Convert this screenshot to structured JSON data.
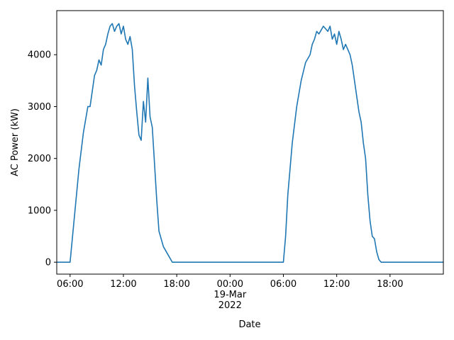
{
  "chart_data": {
    "type": "line",
    "xlabel": "Date",
    "ylabel": "AC Power (kW)",
    "xlim": [
      4.5,
      48
    ],
    "ylim": [
      -230,
      4850
    ],
    "xticks": [
      {
        "value": 6,
        "label": "06:00"
      },
      {
        "value": 12,
        "label": "12:00"
      },
      {
        "value": 18,
        "label": "18:00"
      },
      {
        "value": 24,
        "label": "00:00\n19-Mar\n2022"
      },
      {
        "value": 30,
        "label": "06:00"
      },
      {
        "value": 36,
        "label": "12:00"
      },
      {
        "value": 42,
        "label": "18:00"
      }
    ],
    "yticks": [
      0,
      1000,
      2000,
      3000,
      4000
    ],
    "grid": false,
    "series": [
      {
        "name": "AC Power",
        "color": "#1f77b4",
        "x": [
          4.5,
          6.0,
          6.5,
          7,
          7.5,
          8,
          8.25,
          8.5,
          8.75,
          9,
          9.25,
          9.5,
          9.75,
          10,
          10.25,
          10.5,
          10.75,
          11,
          11.25,
          11.5,
          11.75,
          12,
          12.25,
          12.5,
          12.75,
          13,
          13.25,
          13.5,
          13.75,
          14,
          14.25,
          14.5,
          14.75,
          15,
          15.25,
          15.5,
          15.75,
          16,
          16.5,
          17,
          17.5,
          30.0,
          30.25,
          30.5,
          31,
          31.5,
          32,
          32.5,
          33,
          33.25,
          33.5,
          33.75,
          34,
          34.5,
          34.75,
          35,
          35.25,
          35.5,
          35.75,
          36,
          36.25,
          36.5,
          36.75,
          37,
          37.5,
          37.75,
          38,
          38.25,
          38.5,
          38.75,
          39,
          39.25,
          39.5,
          39.75,
          40,
          40.25,
          40.5,
          40.75,
          41,
          48
        ],
        "values": [
          0,
          0,
          900,
          1800,
          2500,
          3000,
          3000,
          3300,
          3600,
          3700,
          3900,
          3800,
          4100,
          4200,
          4400,
          4550,
          4600,
          4450,
          4550,
          4600,
          4400,
          4550,
          4300,
          4200,
          4350,
          4100,
          3400,
          2900,
          2450,
          2350,
          3100,
          2700,
          3550,
          2800,
          2600,
          1900,
          1200,
          600,
          300,
          150,
          0,
          0,
          500,
          1300,
          2300,
          3000,
          3500,
          3850,
          4000,
          4200,
          4300,
          4450,
          4400,
          4550,
          4500,
          4450,
          4550,
          4300,
          4400,
          4200,
          4450,
          4300,
          4100,
          4200,
          4000,
          3800,
          3500,
          3200,
          2900,
          2700,
          2300,
          2000,
          1300,
          800,
          500,
          450,
          200,
          50,
          0,
          0
        ]
      }
    ]
  }
}
